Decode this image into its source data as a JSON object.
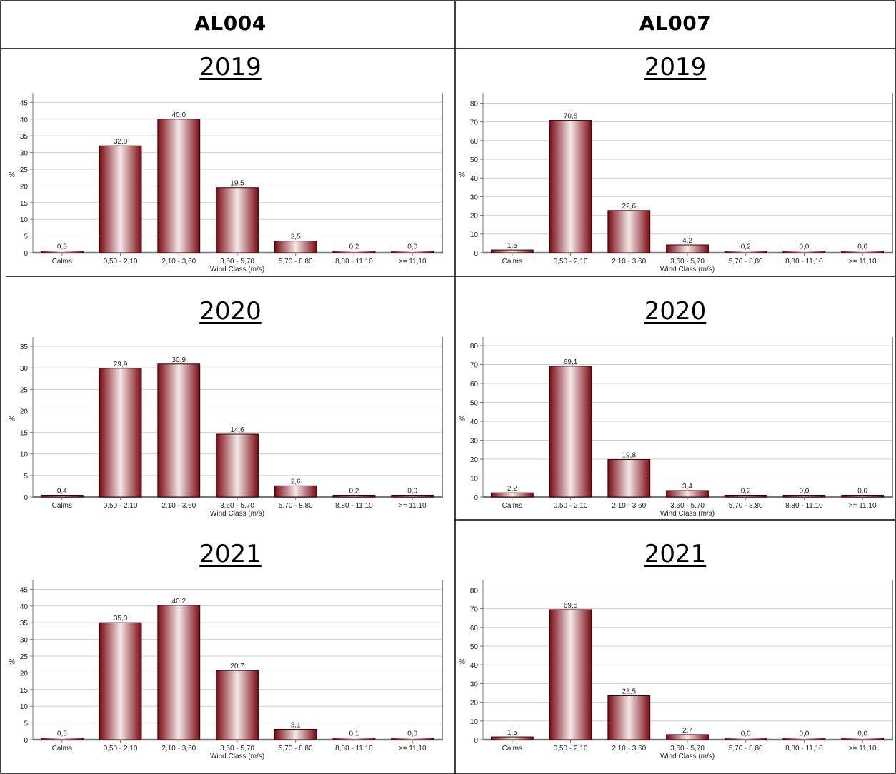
{
  "columns": [
    "AL004",
    "AL007"
  ],
  "years": [
    "2019",
    "2020",
    "2021"
  ],
  "chart_data": [
    {
      "type": "bar",
      "station": "AL004",
      "year": "2019",
      "xlabel": "Wind Class (m/s)",
      "ylabel": "%",
      "ylim": [
        0,
        47
      ],
      "yticks": [
        0,
        5,
        10,
        15,
        20,
        25,
        30,
        35,
        40,
        45
      ],
      "categories": [
        "Calms",
        "0,50 - 2,10",
        "2,10 - 3,60",
        "3,60 - 5,70",
        "5,70 - 8,80",
        "8,80 - 11,10",
        ">= 11,10"
      ],
      "values": [
        0.3,
        32.0,
        40.0,
        19.5,
        3.5,
        0.2,
        0.0
      ],
      "labels": [
        "0,3",
        "32,0",
        "40,0",
        "19,5",
        "3,5",
        "0,2",
        "0,0"
      ]
    },
    {
      "type": "bar",
      "station": "AL007",
      "year": "2019",
      "xlabel": "Wind Class (m/s)",
      "ylabel": "%",
      "ylim": [
        0,
        84
      ],
      "yticks": [
        0,
        10,
        20,
        30,
        40,
        50,
        60,
        70,
        80
      ],
      "categories": [
        "Calms",
        "0,50 - 2,10",
        "2,10 - 3,60",
        "3,60 - 5,70",
        "5,70 - 8,80",
        "8,80 - 11,10",
        ">= 11,10"
      ],
      "values": [
        1.5,
        70.8,
        22.6,
        4.2,
        0.2,
        0.0,
        0.0
      ],
      "labels": [
        "1,5",
        "70,8",
        "22,6",
        "4,2",
        "0,2",
        "0,0",
        "0,0"
      ]
    },
    {
      "type": "bar",
      "station": "AL004",
      "year": "2020",
      "xlabel": "Wind Class (m/s)",
      "ylabel": "%",
      "ylim": [
        0,
        36.5
      ],
      "yticks": [
        0,
        5,
        10,
        15,
        20,
        25,
        30,
        35
      ],
      "categories": [
        "Calms",
        "0,50 - 2,10",
        "2,10 - 3,60",
        "3,60 - 5,70",
        "5,70 - 8,80",
        "8,80 - 11,10",
        ">= 11,10"
      ],
      "values": [
        0.4,
        29.9,
        30.9,
        14.6,
        2.6,
        0.2,
        0.0
      ],
      "labels": [
        "0,4",
        "29,9",
        "30,9",
        "14,6",
        "2,6",
        "0,2",
        "0,0"
      ]
    },
    {
      "type": "bar",
      "station": "AL007",
      "year": "2020",
      "xlabel": "Wind Class (m/s)",
      "ylabel": "%",
      "ylim": [
        0,
        83
      ],
      "yticks": [
        0,
        10,
        20,
        30,
        40,
        50,
        60,
        70,
        80
      ],
      "categories": [
        "Calms",
        "0,50 - 2,10",
        "2,10 - 3,60",
        "3,60 - 5,70",
        "5,70 - 8,80",
        "8,80 - 11,10",
        ">= 11,10"
      ],
      "values": [
        2.2,
        69.1,
        19.8,
        3.4,
        0.2,
        0.0,
        0.0
      ],
      "labels": [
        "2,2",
        "69,1",
        "19,8",
        "3,4",
        "0,2",
        "0,0",
        "0,0"
      ]
    },
    {
      "type": "bar",
      "station": "AL004",
      "year": "2021",
      "xlabel": "Wind Class (m/s)",
      "ylabel": "%",
      "ylim": [
        0,
        47
      ],
      "yticks": [
        0,
        5,
        10,
        15,
        20,
        25,
        30,
        35,
        40,
        45
      ],
      "categories": [
        "Calms",
        "0,50 - 2,10",
        "2,10 - 3,60",
        "3,60 - 5,70",
        "5,70 - 8,80",
        "8,80 - 11,10",
        ">= 11,10"
      ],
      "values": [
        0.5,
        35.0,
        40.2,
        20.7,
        3.1,
        0.1,
        0.0
      ],
      "labels": [
        "0,5",
        "35,0",
        "40,2",
        "20,7",
        "3,1",
        "0,1",
        "0,0"
      ]
    },
    {
      "type": "bar",
      "station": "AL007",
      "year": "2021",
      "xlabel": "Wind Class (m/s)",
      "ylabel": "%",
      "ylim": [
        0,
        84
      ],
      "yticks": [
        0,
        10,
        20,
        30,
        40,
        50,
        60,
        70,
        80
      ],
      "categories": [
        "Calms",
        "0,50 - 2,10",
        "2,10 - 3,60",
        "3,60 - 5,70",
        "5,70 - 8,80",
        "8,80 - 11,10",
        ">= 11,10"
      ],
      "values": [
        1.5,
        69.5,
        23.5,
        2.7,
        0.0,
        0.0,
        0.0
      ],
      "labels": [
        "1,5",
        "69,5",
        "23,5",
        "2,7",
        "0,0",
        "0,0",
        "0,0"
      ]
    }
  ],
  "colors": {
    "bar_dark": "#7a0a12",
    "bar_light": "#f4e8e8",
    "grid": "#cfcfcf",
    "axis": "#777777",
    "border": "#000000"
  }
}
